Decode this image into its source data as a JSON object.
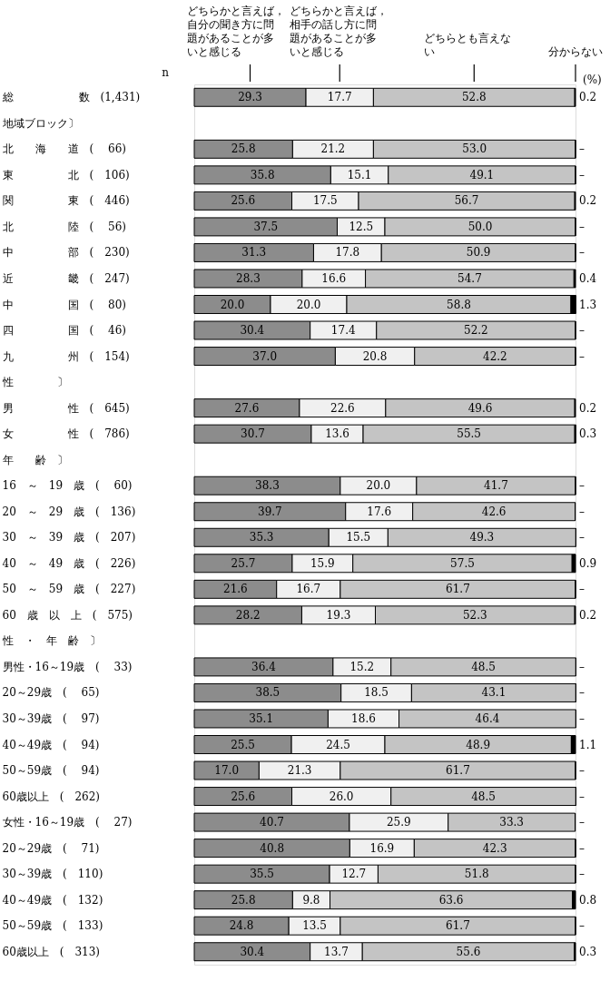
{
  "chart_data": {
    "type": "bar",
    "orientation": "horizontal",
    "stacked": true,
    "legend": false,
    "grid": false,
    "tick_labels": "y",
    "xlim": [
      0,
      100
    ],
    "annotations": [
      "n",
      "(%)"
    ],
    "categories": [
      "総　　　　　　数　(1,431)",
      "地域ブロック〕",
      "北　　海　　道　(　 66)",
      "東　　　　　北　(　106)",
      "関　　　　　東　(　446)",
      "北　　　　　陸　(　 56)",
      "中　　　　　部　(　230)",
      "近　　　　　畿　(　247)",
      "中　　　　　国　(　 80)",
      "四　　　　　国　(　 46)",
      "九　　　　　州　(　154)",
      "　性　　　　〕",
      "男　　　　　性　(　645)",
      "女　　　　　性　(　786)",
      "　年　　齢　〕",
      "16　～　19　歳　(　 60)",
      "20　～　29　歳　(　136)",
      "30　～　39　歳　(　207)",
      "40　～　49　歳　(　226)",
      "50　～　59　歳　(　227)",
      "60　歳　以　上　(　575)",
      "性　・　年　齢　〕",
      "男性・16～19歳　(　 33)",
      "　　　20～29歳　(　 65)",
      "　　　30～39歳　(　 97)",
      "　　　40～49歳　(　 94)",
      "　　　50～59歳　(　 94)",
      "　　　60歳以上　(　262)",
      "女性・16～19歳　(　 27)",
      "　　　20～29歳　(　 71)",
      "　　　30～39歳　(　110)",
      "　　　40～49歳　(　132)",
      "　　　50～59歳　(　133)",
      "　　　60歳以上　(　313)"
    ],
    "series": [
      {
        "name": "どちらかと言えば，自分の聞き方に問題があることが多いと感じる",
        "color": "#8c8c8c",
        "values": [
          29.3,
          null,
          25.8,
          35.8,
          25.6,
          37.5,
          31.3,
          28.3,
          20.0,
          30.4,
          37.0,
          null,
          27.6,
          30.7,
          null,
          38.3,
          39.7,
          35.3,
          25.7,
          21.6,
          28.2,
          null,
          36.4,
          38.5,
          35.1,
          25.5,
          17.0,
          25.6,
          40.7,
          40.8,
          35.5,
          25.8,
          24.8,
          30.4
        ],
        "value_labels": [
          "29.3",
          null,
          "25.8",
          "35.8",
          "25.6",
          "37.5",
          "31.3",
          "28.3",
          "20.0",
          "30.4",
          "37.0",
          null,
          "27.6",
          "30.7",
          null,
          "38.3",
          "39.7",
          "35.3",
          "25.7",
          "21.6",
          "28.2",
          null,
          "36.4",
          "38.5",
          "35.1",
          "25.5",
          "17.0",
          "25.6",
          "40.7",
          "40.8",
          "35.5",
          "25.8",
          "24.8",
          "30.4"
        ]
      },
      {
        "name": "どちらかと言えば，相手の話し方に問題があることが多いと感じる",
        "color": "#f0f0f0",
        "values": [
          17.7,
          null,
          21.2,
          15.1,
          17.5,
          12.5,
          17.8,
          16.6,
          20.0,
          17.4,
          20.8,
          null,
          22.6,
          13.6,
          null,
          20.0,
          17.6,
          15.5,
          15.9,
          16.7,
          19.3,
          null,
          15.2,
          18.5,
          18.6,
          24.5,
          21.3,
          26.0,
          25.9,
          16.9,
          12.7,
          9.8,
          13.5,
          13.7
        ],
        "value_labels": [
          "17.7",
          null,
          "21.2",
          "15.1",
          "17.5",
          "12.5",
          "17.8",
          "16.6",
          "20.0",
          "17.4",
          "20.8",
          null,
          "22.6",
          "13.6",
          null,
          "20.0",
          "17.6",
          "15.5",
          "15.9",
          "16.7",
          "19.3",
          null,
          "15.2",
          "18.5",
          "18.6",
          "24.5",
          "21.3",
          "26.0",
          "25.9",
          "16.9",
          "12.7",
          "9.8",
          "13.5",
          "13.7"
        ]
      },
      {
        "name": "どちらとも言えない",
        "color": "#c4c4c4",
        "values": [
          52.8,
          null,
          53.0,
          49.1,
          56.7,
          50.0,
          50.9,
          54.7,
          58.8,
          52.2,
          42.2,
          null,
          49.6,
          55.5,
          null,
          41.7,
          42.6,
          49.3,
          57.5,
          61.7,
          52.3,
          null,
          48.5,
          43.1,
          46.4,
          48.9,
          61.7,
          48.5,
          33.3,
          42.3,
          51.8,
          63.6,
          61.7,
          55.6
        ],
        "value_labels": [
          "52.8",
          null,
          "53.0",
          "49.1",
          "56.7",
          "50.0",
          "50.9",
          "54.7",
          "58.8",
          "52.2",
          "42.2",
          null,
          "49.6",
          "55.5",
          null,
          "41.7",
          "42.6",
          "49.3",
          "57.5",
          "61.7",
          "52.3",
          null,
          "48.5",
          "43.1",
          "46.4",
          "48.9",
          "61.7",
          "48.5",
          "33.3",
          "42.3",
          "51.8",
          "63.6",
          "61.7",
          "55.6"
        ]
      },
      {
        "name": "分からない",
        "color": "#000000",
        "values": [
          0.2,
          null,
          0,
          0,
          0.2,
          0,
          0,
          0.4,
          1.3,
          0,
          0,
          null,
          0.2,
          0.3,
          null,
          0,
          0,
          0,
          0.9,
          0,
          0.2,
          null,
          0,
          0,
          0,
          1.1,
          0,
          0,
          0,
          0,
          0,
          0.8,
          0,
          0.3
        ],
        "value_labels": [
          "0.2",
          null,
          "–",
          "–",
          "0.2",
          "–",
          "–",
          "0.4",
          "1.3",
          "–",
          "–",
          null,
          "0.2",
          "0.3",
          null,
          "–",
          "–",
          "–",
          "0.9",
          "–",
          "0.2",
          null,
          "–",
          "–",
          "–",
          "1.1",
          "–",
          "–",
          "–",
          "–",
          "–",
          "0.8",
          "–",
          "0.3"
        ]
      }
    ]
  }
}
